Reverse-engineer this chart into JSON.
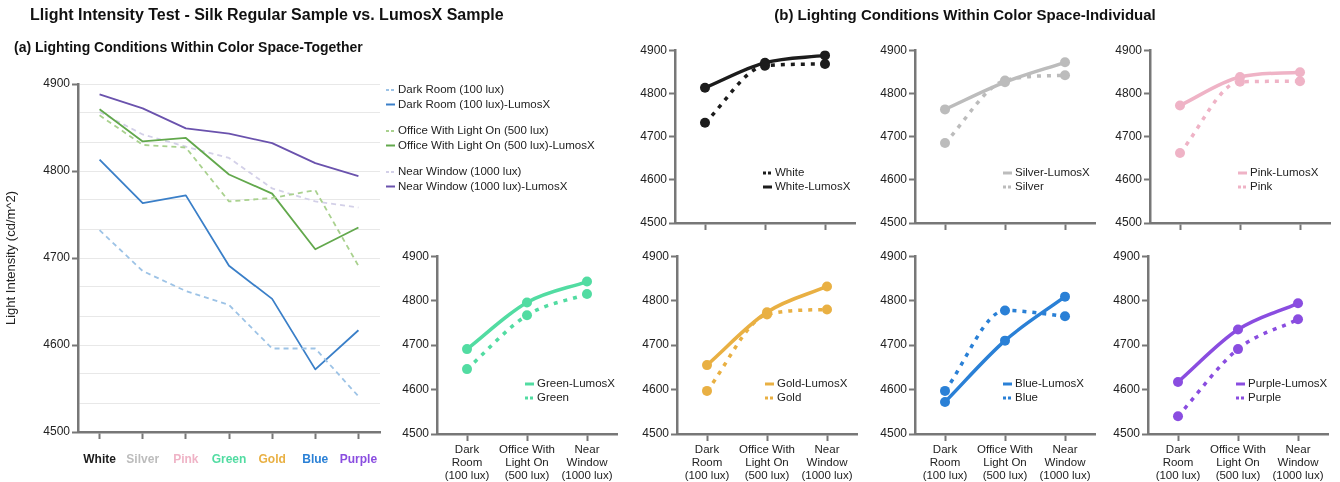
{
  "chart_data": [
    {
      "type": "line",
      "title": "Llight Intensity Test - Silk Regular Sample vs. LumosX Sample",
      "subtitle": "(a) Lighting Conditions Within Color Space-Together",
      "ylabel": "Light Intensity (cd/m^2)",
      "categories": [
        "White",
        "Silver",
        "Pink",
        "Green",
        "Gold",
        "Blue",
        "Purple"
      ],
      "series": [
        {
          "name": "Dark Room (100 lux)",
          "color": "#9dc3e6",
          "line_style": "dashed",
          "values": [
            4732,
            4685,
            4662,
            4646,
            4596,
            4596,
            4541
          ]
        },
        {
          "name": "Dark Room (100 lux)-LumosX",
          "color": "#3a7fc8",
          "line_style": "solid",
          "values": [
            4813,
            4763,
            4772,
            4691,
            4653,
            4572,
            4617
          ]
        },
        {
          "name": "Office With Light On (500 lux)",
          "color": "#a9d18e",
          "line_style": "dashed",
          "values": [
            4864,
            4830,
            4827,
            4765,
            4769,
            4778,
            4691
          ]
        },
        {
          "name": "Office With Light On (500 lux)-LumosX",
          "color": "#62a84c",
          "line_style": "solid",
          "values": [
            4871,
            4834,
            4838,
            4796,
            4774,
            4710,
            4735
          ]
        },
        {
          "name": "Near Window (1000 lux)",
          "color": "#d3d0e8",
          "line_style": "dashed",
          "values": [
            4868,
            4842,
            4828,
            4815,
            4780,
            4765,
            4758
          ]
        },
        {
          "name": "Near Window (1000 lux)-LumosX",
          "color": "#6a52ad",
          "line_style": "solid",
          "values": [
            4888,
            4872,
            4849,
            4843,
            4832,
            4809,
            4794
          ]
        }
      ],
      "ylim": [
        4500,
        4900
      ],
      "yticks": [
        4500,
        {
          "value": 4533.33,
          "label": null
        },
        {
          "value": 4566.67,
          "label": null
        },
        4600,
        {
          "value": 4633.33,
          "label": null
        },
        {
          "value": 4666.67,
          "label": null
        },
        4700,
        {
          "value": 4733.33,
          "label": null
        },
        {
          "value": 4766.67,
          "label": null
        },
        4800,
        {
          "value": 4833.33,
          "label": null
        },
        {
          "value": 4866.67,
          "label": null
        },
        4900
      ],
      "grid": "y",
      "legend": "right",
      "marker": "none"
    },
    {
      "type": "line",
      "title": "(b) Lighting Conditions Within Color Space-Individual",
      "categories": [
        null,
        null,
        null
      ],
      "series": [
        {
          "name": "White",
          "color": "#1c1c1c",
          "line_style": "dotted",
          "values": [
            4732,
            4864,
            4868
          ]
        },
        {
          "name": "White-LumosX",
          "color": "#1c1c1c",
          "line_style": "solid",
          "values": [
            4813,
            4871,
            4888
          ]
        }
      ],
      "ylim": [
        4500,
        4900
      ],
      "yticks": [
        4500,
        4600,
        4700,
        4800,
        4900
      ],
      "legend": "bottom right",
      "marker": "circle",
      "tick_labels": "y"
    },
    {
      "type": "line",
      "categories": [
        null,
        null,
        null
      ],
      "series": [
        {
          "name": "Silver-LumosX",
          "color": "#bcbcbc",
          "line_style": "solid",
          "values": [
            4763,
            4826,
            4872
          ]
        },
        {
          "name": "Silver",
          "color": "#bcbcbc",
          "line_style": "dotted",
          "values": [
            4685,
            4830,
            4842
          ]
        }
      ],
      "ylim": [
        4500,
        4900
      ],
      "yticks": [
        4500,
        4600,
        4700,
        4800,
        4900
      ],
      "legend": "bottom right",
      "marker": "circle",
      "tick_labels": "y"
    },
    {
      "type": "line",
      "categories": [
        null,
        null,
        null
      ],
      "series": [
        {
          "name": "Pink-LumosX",
          "color": "#efb3c6",
          "line_style": "solid",
          "values": [
            4772,
            4838,
            4849
          ]
        },
        {
          "name": "Pink",
          "color": "#efb3c6",
          "line_style": "dotted",
          "values": [
            4662,
            4827,
            4828
          ]
        }
      ],
      "ylim": [
        4500,
        4900
      ],
      "yticks": [
        4500,
        4600,
        4700,
        4800,
        4900
      ],
      "legend": "bottom right",
      "marker": "circle",
      "tick_labels": "y"
    },
    {
      "type": "line",
      "categories": [
        "Dark Room (100 lux)",
        "Office With Light On (500 lux)",
        "Near Window (1000 lux)"
      ],
      "series": [
        {
          "name": "Green-LumosX",
          "color": "#52dca2",
          "line_style": "solid",
          "values": [
            4691,
            4796,
            4843
          ]
        },
        {
          "name": "Green",
          "color": "#52dca2",
          "line_style": "dotted",
          "values": [
            4646,
            4767,
            4815
          ]
        }
      ],
      "ylim": [
        4500,
        4900
      ],
      "yticks": [
        4500,
        4600,
        4700,
        4800,
        4900
      ],
      "legend": "bottom right",
      "marker": "circle"
    },
    {
      "type": "line",
      "categories": [
        "Dark Room (100 lux)",
        "Office With Light On (500 lux)",
        "Near Window (1000 lux)"
      ],
      "series": [
        {
          "name": "Gold-LumosX",
          "color": "#e9b043",
          "line_style": "solid",
          "values": [
            4655,
            4774,
            4832
          ]
        },
        {
          "name": "Gold",
          "color": "#e9b043",
          "line_style": "dotted",
          "values": [
            4597,
            4769,
            4780
          ]
        }
      ],
      "ylim": [
        4500,
        4900
      ],
      "yticks": [
        4500,
        4600,
        4700,
        4800,
        4900
      ],
      "legend": "bottom right",
      "marker": "circle"
    },
    {
      "type": "line",
      "categories": [
        "Dark Room (100 lux)",
        "Office With Light On (500 lux)",
        "Near Window (1000 lux)"
      ],
      "series": [
        {
          "name": "Blue-LumosX",
          "color": "#2a80d6",
          "line_style": "solid",
          "values": [
            4572,
            4710,
            4809
          ]
        },
        {
          "name": "Blue",
          "color": "#2a80d6",
          "line_style": "dotted",
          "values": [
            4597,
            4778,
            4765
          ]
        }
      ],
      "ylim": [
        4500,
        4900
      ],
      "yticks": [
        4500,
        4600,
        4700,
        4800,
        4900
      ],
      "legend": "bottom right",
      "marker": "circle"
    },
    {
      "type": "line",
      "categories": [
        "Dark Room (100 lux)",
        "Office With Light On (500 lux)",
        "Near Window (1000 lux)"
      ],
      "series": [
        {
          "name": "Purple-LumosX",
          "color": "#8a4de0",
          "line_style": "solid",
          "values": [
            4617,
            4735,
            4794
          ]
        },
        {
          "name": "Purple",
          "color": "#8a4de0",
          "line_style": "dotted",
          "values": [
            4540,
            4691,
            4758
          ]
        }
      ],
      "ylim": [
        4500,
        4900
      ],
      "yticks": [
        4500,
        4600,
        4700,
        4800,
        4900
      ],
      "legend": "bottom right",
      "marker": "circle"
    }
  ]
}
